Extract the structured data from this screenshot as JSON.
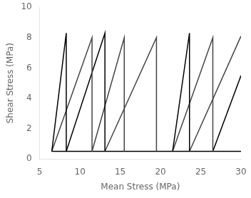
{
  "chart_data": {
    "type": "line",
    "xlabel": "Mean Stress (MPa)",
    "ylabel": "Shear Stress (MPa)",
    "xlim": [
      5,
      30
    ],
    "ylim": [
      0,
      10
    ],
    "xticks": [
      5,
      10,
      15,
      20,
      25,
      30
    ],
    "yticks": [
      0,
      2,
      4,
      6,
      8,
      10
    ],
    "grid": false,
    "series": [
      {
        "color": "#000000",
        "x": [
          6.5,
          8.3,
          8.3
        ],
        "values": [
          0.5,
          8.3,
          0.5
        ]
      },
      {
        "color": "#444444",
        "x": [
          6.5,
          11.5,
          11.5
        ],
        "values": [
          0.5,
          8.0,
          0.5
        ]
      },
      {
        "color": "#000000",
        "x": [
          8.3,
          13.1,
          13.1
        ],
        "values": [
          0.5,
          8.3,
          0.5
        ]
      },
      {
        "color": "#444444",
        "x": [
          11.5,
          15.5,
          15.5
        ],
        "values": [
          0.5,
          8.0,
          0.5
        ]
      },
      {
        "color": "#444444",
        "x": [
          13.1,
          19.5,
          19.5
        ],
        "values": [
          0.5,
          8.0,
          0.5
        ]
      },
      {
        "color": "#000000",
        "x": [
          21.5,
          23.6,
          23.6
        ],
        "values": [
          0.5,
          8.3,
          0.5
        ]
      },
      {
        "color": "#444444",
        "x": [
          21.5,
          26.5,
          26.5
        ],
        "values": [
          0.5,
          8.0,
          0.5
        ]
      },
      {
        "color": "#444444",
        "x": [
          23.6,
          30.0
        ],
        "values": [
          0.5,
          8.1
        ]
      },
      {
        "color": "#000000",
        "x": [
          26.5,
          30.0
        ],
        "values": [
          0.5,
          5.5
        ]
      },
      {
        "color": "#000000",
        "x": [
          6.5,
          21.5
        ],
        "values": [
          0.5,
          0.5
        ]
      },
      {
        "color": "#000000",
        "x": [
          21.5,
          30.0
        ],
        "values": [
          0.5,
          0.5
        ]
      }
    ]
  }
}
